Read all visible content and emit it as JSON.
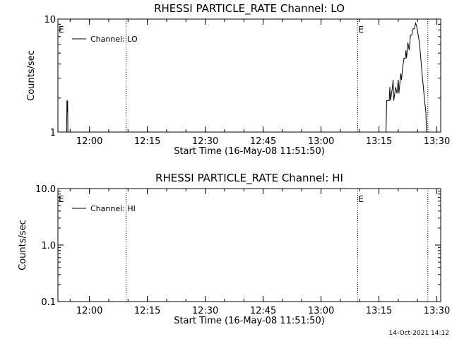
{
  "footer_timestamp": "14-Oct-2021 14:12",
  "chart_data": [
    {
      "type": "line",
      "title": "RHESSI PARTICLE_RATE Channel: LO",
      "xlabel": "Start Time (16-May-08 11:51:50)",
      "ylabel": "Counts/sec",
      "yscale": "log",
      "ylim": [
        1,
        10
      ],
      "yticks": [
        {
          "value": 1,
          "label": "1"
        },
        {
          "value": 10,
          "label": "10"
        }
      ],
      "xlim": [
        "11:51:50",
        "13:31:00"
      ],
      "xticks": [
        "12:00",
        "12:15",
        "12:30",
        "12:45",
        "13:00",
        "13:15",
        "13:30"
      ],
      "legend": {
        "position": "top-left",
        "entries": [
          "Channel: LO"
        ]
      },
      "event_markers": [
        {
          "time": "11:51:50",
          "label": "E"
        },
        {
          "time": "13:09:30",
          "label": "E"
        }
      ],
      "dotted_lines": [
        "12:09:30",
        "13:09:30",
        "13:27:40"
      ],
      "series": [
        {
          "name": "Channel: LO",
          "segments": [
            [
              {
                "x": "11:54:05",
                "y": 1
              },
              {
                "x": "11:54:10",
                "y": 1.9
              },
              {
                "x": "11:54:15",
                "y": 1.5
              },
              {
                "x": "11:54:20",
                "y": 1.9
              },
              {
                "x": "11:54:25",
                "y": 1
              }
            ],
            [
              {
                "x": "13:16:50",
                "y": 1
              },
              {
                "x": "13:17:00",
                "y": 1.9
              },
              {
                "x": "13:17:40",
                "y": 1.9
              },
              {
                "x": "13:17:50",
                "y": 2.5
              },
              {
                "x": "13:18:00",
                "y": 1.9
              },
              {
                "x": "13:18:30",
                "y": 2.5
              },
              {
                "x": "13:18:40",
                "y": 2.9
              },
              {
                "x": "13:18:50",
                "y": 1.9
              },
              {
                "x": "13:19:20",
                "y": 2.5
              },
              {
                "x": "13:19:40",
                "y": 2.2
              },
              {
                "x": "13:20:00",
                "y": 2.9
              },
              {
                "x": "13:20:10",
                "y": 2.2
              },
              {
                "x": "13:20:40",
                "y": 3.3
              },
              {
                "x": "13:20:50",
                "y": 2.9
              },
              {
                "x": "13:21:10",
                "y": 3.8
              },
              {
                "x": "13:21:30",
                "y": 4.5
              },
              {
                "x": "13:21:50",
                "y": 4.5
              },
              {
                "x": "13:22:00",
                "y": 5.3
              },
              {
                "x": "13:22:10",
                "y": 4.5
              },
              {
                "x": "13:22:30",
                "y": 6.2
              },
              {
                "x": "13:22:50",
                "y": 5.3
              },
              {
                "x": "13:23:10",
                "y": 7.2
              },
              {
                "x": "13:23:30",
                "y": 7.2
              },
              {
                "x": "13:23:50",
                "y": 8.2
              },
              {
                "x": "13:24:10",
                "y": 8.2
              },
              {
                "x": "13:24:30",
                "y": 9.2
              },
              {
                "x": "13:24:50",
                "y": 8.5
              },
              {
                "x": "13:25:10",
                "y": 7.2
              },
              {
                "x": "13:25:30",
                "y": 6.2
              },
              {
                "x": "13:25:50",
                "y": 4.5
              },
              {
                "x": "13:26:10",
                "y": 3.3
              },
              {
                "x": "13:26:30",
                "y": 2.5
              },
              {
                "x": "13:26:50",
                "y": 1.9
              },
              {
                "x": "13:27:10",
                "y": 1.5
              },
              {
                "x": "13:27:20",
                "y": 1
              }
            ]
          ]
        }
      ]
    },
    {
      "type": "line",
      "title": "RHESSI PARTICLE_RATE Channel: HI",
      "xlabel": "Start Time (16-May-08 11:51:50)",
      "ylabel": "Counts/sec",
      "yscale": "log",
      "ylim": [
        0.1,
        10
      ],
      "yticks": [
        {
          "value": 0.1,
          "label": "0.1"
        },
        {
          "value": 1,
          "label": "1.0"
        },
        {
          "value": 10,
          "label": "10.0"
        }
      ],
      "xlim": [
        "11:51:50",
        "13:31:00"
      ],
      "xticks": [
        "12:00",
        "12:15",
        "12:30",
        "12:45",
        "13:00",
        "13:15",
        "13:30"
      ],
      "legend": {
        "position": "top-left",
        "entries": [
          "Channel: HI"
        ]
      },
      "event_markers": [
        {
          "time": "11:51:50",
          "label": "E"
        },
        {
          "time": "13:09:30",
          "label": "E"
        }
      ],
      "dotted_lines": [
        "12:09:30",
        "13:09:30",
        "13:27:40"
      ],
      "series": [
        {
          "name": "Channel: HI",
          "segments": []
        }
      ]
    }
  ]
}
